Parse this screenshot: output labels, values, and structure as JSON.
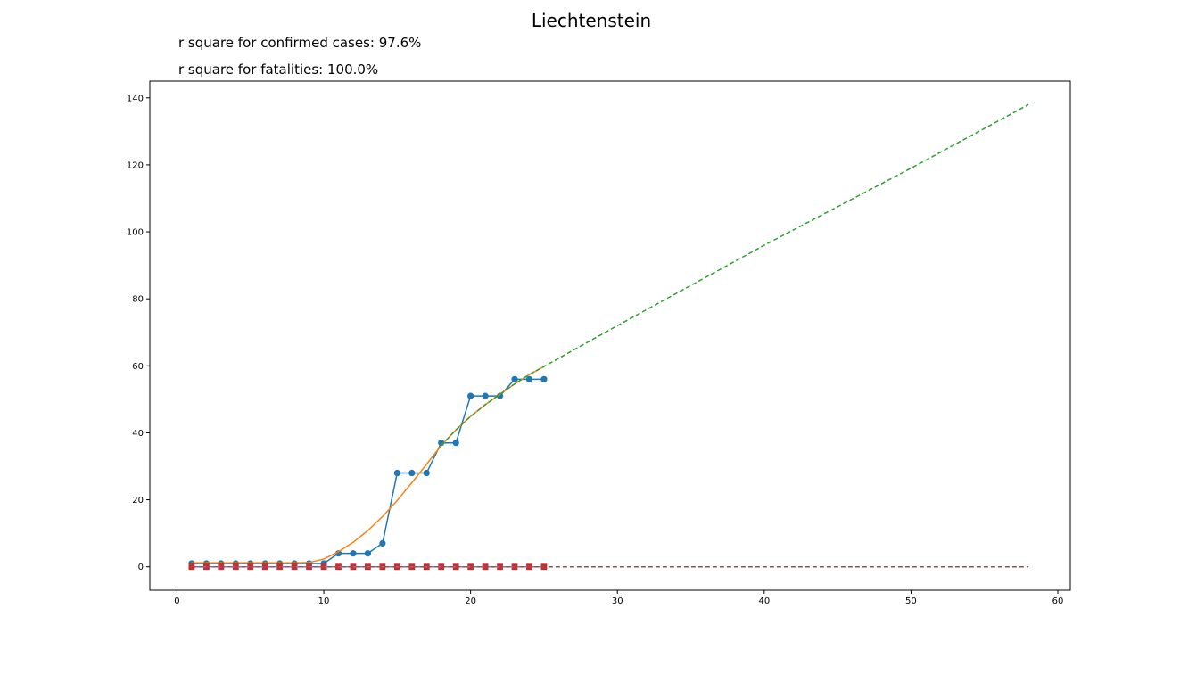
{
  "chart_data": {
    "type": "line",
    "title": "Liechtenstein",
    "annotations": [
      "r square for confirmed cases: 97.6%",
      "r square for fatalities: 100.0%"
    ],
    "xlabel": "",
    "ylabel": "",
    "xlim": [
      -1.85,
      60.85
    ],
    "ylim": [
      -7,
      145
    ],
    "xticks": [
      0,
      10,
      20,
      30,
      40,
      50,
      60
    ],
    "yticks": [
      0,
      20,
      40,
      60,
      80,
      100,
      120,
      140
    ],
    "grid": false,
    "legend": "none",
    "series": [
      {
        "role": "confirmed-actual",
        "color": "#1f77b4",
        "style": "solid",
        "marker": "circle",
        "x": [
          1,
          2,
          3,
          4,
          5,
          6,
          7,
          8,
          9,
          10,
          11,
          12,
          13,
          14,
          15,
          16,
          17,
          18,
          19,
          20,
          21,
          22,
          23,
          24,
          25
        ],
        "y": [
          1,
          1,
          1,
          1,
          1,
          1,
          1,
          1,
          1,
          1,
          4,
          4,
          4,
          7,
          28,
          28,
          28,
          37,
          37,
          51,
          51,
          51,
          56,
          56,
          56
        ]
      },
      {
        "role": "confirmed-fit",
        "color": "#ff7f0e",
        "style": "solid",
        "marker": "none",
        "x": [
          1,
          2,
          3,
          4,
          5,
          6,
          7,
          8,
          9,
          10,
          11,
          12,
          13,
          14,
          15,
          16,
          17,
          18,
          19,
          20,
          21,
          22,
          23,
          24,
          25
        ],
        "y": [
          1.2,
          1.2,
          1.2,
          1.2,
          1.2,
          1.2,
          1.2,
          1.2,
          1.3,
          2.3,
          4.5,
          7.3,
          10.8,
          15.0,
          19.8,
          25.1,
          30.6,
          36.2,
          40.9,
          44.9,
          48.4,
          51.5,
          54.6,
          57.4,
          59.8
        ]
      },
      {
        "role": "confirmed-projection",
        "color": "#2ca02c",
        "style": "dashed",
        "marker": "none",
        "x": [
          18,
          19,
          20,
          21,
          22,
          23,
          24,
          25,
          30,
          40,
          50,
          58
        ],
        "y": [
          36.2,
          40.9,
          44.9,
          48.4,
          51.5,
          54.6,
          57.4,
          59.8,
          72.0,
          96.0,
          119.0,
          138.0
        ]
      },
      {
        "role": "fatalities-actual",
        "color": "#d62728",
        "style": "solid",
        "marker": "square",
        "x": [
          1,
          2,
          3,
          4,
          5,
          6,
          7,
          8,
          9,
          10,
          11,
          12,
          13,
          14,
          15,
          16,
          17,
          18,
          19,
          20,
          21,
          22,
          23,
          24,
          25
        ],
        "y": [
          0,
          0,
          0,
          0,
          0,
          0,
          0,
          0,
          0,
          0,
          0,
          0,
          0,
          0,
          0,
          0,
          0,
          0,
          0,
          0,
          0,
          0,
          0,
          0,
          0
        ]
      },
      {
        "role": "fatalities-fit",
        "color": "#9467bd",
        "style": "solid",
        "marker": "none",
        "x": [
          1,
          25
        ],
        "y": [
          0,
          0
        ]
      },
      {
        "role": "fatalities-projection",
        "color": "#8c564b",
        "style": "dashed",
        "marker": "none",
        "x": [
          1,
          58
        ],
        "y": [
          0,
          0
        ]
      }
    ]
  }
}
